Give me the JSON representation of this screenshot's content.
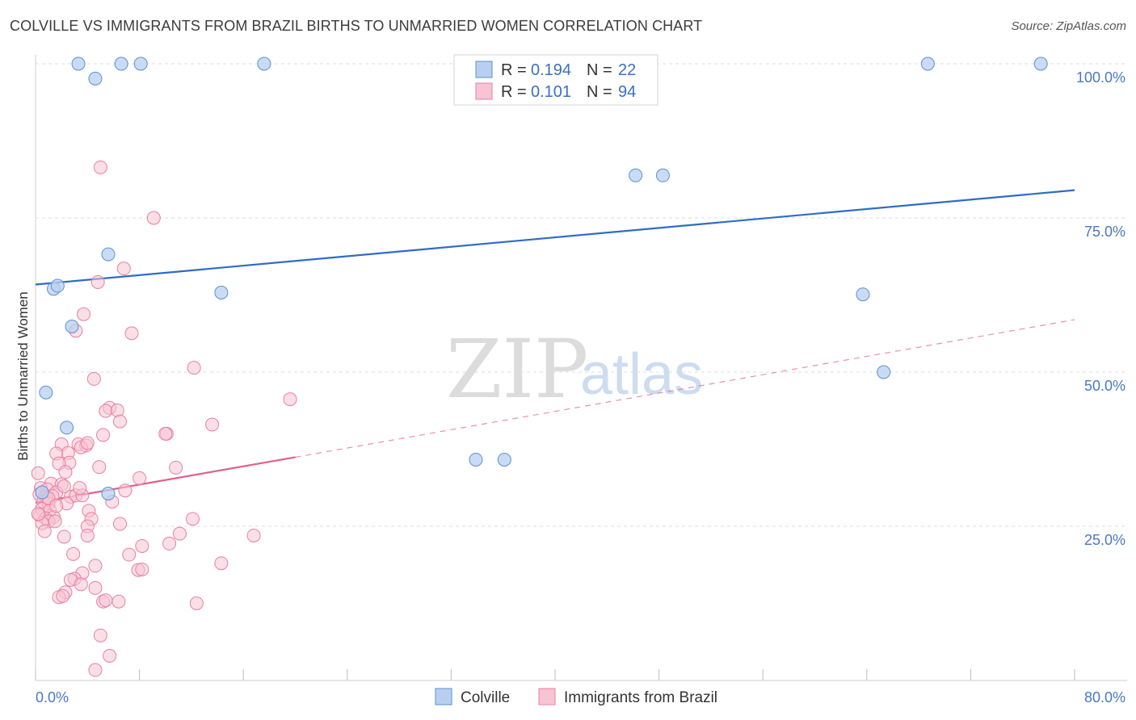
{
  "title": "COLVILLE VS IMMIGRANTS FROM BRAZIL BIRTHS TO UNMARRIED WOMEN CORRELATION CHART",
  "source": "Source: ZipAtlas.com",
  "watermark": {
    "zip": "ZIP",
    "atlas": "atlas"
  },
  "legend": {
    "r_label": "R =",
    "n_label": "N =",
    "series": [
      {
        "r": "0.194",
        "n": "22"
      },
      {
        "r": "0.101",
        "n": "94"
      }
    ]
  },
  "bottom_legend": [
    "Colville",
    "Immigrants from Brazil"
  ],
  "colors": {
    "colville_fill": "#b8d0ef",
    "colville_stroke": "#5b8fd6",
    "colville_line": "#2d6cc7",
    "brazil_fill": "#f7c4d4",
    "brazil_stroke": "#e87fa3",
    "brazil_line": "#e0608d",
    "tick_text": "#4a78c2",
    "grid": "#dddddd"
  },
  "chart_data": {
    "type": "scatter",
    "title": "COLVILLE VS IMMIGRANTS FROM BRAZIL BIRTHS TO UNMARRIED WOMEN CORRELATION CHART",
    "xlabel": "",
    "ylabel": "Births to Unmarried Women",
    "xlim": [
      0,
      80
    ],
    "ylim": [
      0,
      100
    ],
    "x_tick_labels": [
      "0.0%",
      "80.0%"
    ],
    "y_tick_labels": [
      "100.0%",
      "75.0%",
      "50.0%",
      "25.0%"
    ],
    "y_ticks": [
      100,
      75,
      50,
      25
    ],
    "grid": "horizontal dashed",
    "legend_position": "top-center",
    "series": [
      {
        "name": "Colville",
        "r": 0.194,
        "n": 22,
        "trend": {
          "x": [
            0,
            80
          ],
          "y": [
            64.2,
            79.5
          ],
          "style": "solid"
        },
        "points": [
          [
            3.3,
            100
          ],
          [
            6.6,
            100
          ],
          [
            8.1,
            100
          ],
          [
            17.6,
            100
          ],
          [
            68.7,
            100
          ],
          [
            77.4,
            100
          ],
          [
            4.6,
            97.6
          ],
          [
            46.2,
            81.9
          ],
          [
            48.3,
            81.9
          ],
          [
            5.6,
            69.1
          ],
          [
            1.4,
            63.5
          ],
          [
            1.7,
            64.0
          ],
          [
            14.3,
            62.9
          ],
          [
            63.7,
            62.6
          ],
          [
            2.8,
            57.4
          ],
          [
            65.3,
            50.0
          ],
          [
            0.8,
            46.7
          ],
          [
            2.4,
            41.0
          ],
          [
            33.9,
            35.8
          ],
          [
            36.1,
            35.8
          ],
          [
            0.5,
            30.5
          ],
          [
            5.6,
            30.3
          ]
        ]
      },
      {
        "name": "Immigrants from Brazil",
        "r": 0.101,
        "n": 94,
        "trend": {
          "x": [
            0,
            20
          ],
          "y": [
            28.8,
            36.2
          ],
          "style": "solid",
          "extended_to": [
            80,
            58.5
          ],
          "extended_style": "dashed"
        },
        "points": [
          [
            5.0,
            83.2
          ],
          [
            9.1,
            75.0
          ],
          [
            6.8,
            66.8
          ],
          [
            4.8,
            64.6
          ],
          [
            3.7,
            59.4
          ],
          [
            3.1,
            56.7
          ],
          [
            7.4,
            56.3
          ],
          [
            12.2,
            50.7
          ],
          [
            4.5,
            48.9
          ],
          [
            19.6,
            45.6
          ],
          [
            5.7,
            44.2
          ],
          [
            5.4,
            43.7
          ],
          [
            6.3,
            43.8
          ],
          [
            6.5,
            42.0
          ],
          [
            13.6,
            41.5
          ],
          [
            3.3,
            38.3
          ],
          [
            3.9,
            38.1
          ],
          [
            5.2,
            39.8
          ],
          [
            10.1,
            40.0
          ],
          [
            10.0,
            40.0
          ],
          [
            2.0,
            38.3
          ],
          [
            3.5,
            37.8
          ],
          [
            4.0,
            38.5
          ],
          [
            2.5,
            36.9
          ],
          [
            1.6,
            36.8
          ],
          [
            2.6,
            35.3
          ],
          [
            1.8,
            35.2
          ],
          [
            4.9,
            34.6
          ],
          [
            10.8,
            34.5
          ],
          [
            2.3,
            33.8
          ],
          [
            8.0,
            32.8
          ],
          [
            0.2,
            33.6
          ],
          [
            1.2,
            31.9
          ],
          [
            2.0,
            31.8
          ],
          [
            0.4,
            31.2
          ],
          [
            0.9,
            31.0
          ],
          [
            1.6,
            30.5
          ],
          [
            6.9,
            30.8
          ],
          [
            0.3,
            30.2
          ],
          [
            0.8,
            29.8
          ],
          [
            1.3,
            29.9
          ],
          [
            2.7,
            29.8
          ],
          [
            3.1,
            30.0
          ],
          [
            3.6,
            30.0
          ],
          [
            0.6,
            29.0
          ],
          [
            1.0,
            28.7
          ],
          [
            2.4,
            28.7
          ],
          [
            5.9,
            29.0
          ],
          [
            0.5,
            27.8
          ],
          [
            1.1,
            27.6
          ],
          [
            4.1,
            27.5
          ],
          [
            0.3,
            26.8
          ],
          [
            0.8,
            26.3
          ],
          [
            1.4,
            26.5
          ],
          [
            1.0,
            25.8
          ],
          [
            0.5,
            25.5
          ],
          [
            1.5,
            25.8
          ],
          [
            4.3,
            26.2
          ],
          [
            6.5,
            25.4
          ],
          [
            12.1,
            26.2
          ],
          [
            4.0,
            25.0
          ],
          [
            0.7,
            24.2
          ],
          [
            2.2,
            23.3
          ],
          [
            4.0,
            23.5
          ],
          [
            11.1,
            23.8
          ],
          [
            16.8,
            23.5
          ],
          [
            10.3,
            22.2
          ],
          [
            8.2,
            21.8
          ],
          [
            7.2,
            20.4
          ],
          [
            2.9,
            20.5
          ],
          [
            14.3,
            19.0
          ],
          [
            4.6,
            18.6
          ],
          [
            7.9,
            17.9
          ],
          [
            8.2,
            18.0
          ],
          [
            3.6,
            17.4
          ],
          [
            3.0,
            16.5
          ],
          [
            2.7,
            16.3
          ],
          [
            3.5,
            15.6
          ],
          [
            4.6,
            15.0
          ],
          [
            2.3,
            14.3
          ],
          [
            1.8,
            13.5
          ],
          [
            2.1,
            13.7
          ],
          [
            5.2,
            12.8
          ],
          [
            5.4,
            13.0
          ],
          [
            6.4,
            12.8
          ],
          [
            12.4,
            12.5
          ],
          [
            5.0,
            7.3
          ],
          [
            5.7,
            4.0
          ],
          [
            4.6,
            1.7
          ],
          [
            1.0,
            29.5
          ],
          [
            1.6,
            28.3
          ],
          [
            0.2,
            27.0
          ],
          [
            2.2,
            31.5
          ],
          [
            3.4,
            31.2
          ]
        ]
      }
    ]
  }
}
